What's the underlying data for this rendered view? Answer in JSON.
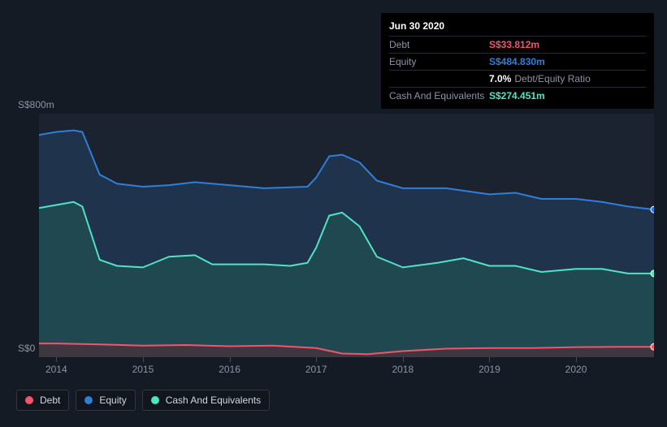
{
  "background_color": "#151b24",
  "chart": {
    "type": "area",
    "x": {
      "min": 2013.8,
      "max": 2020.9,
      "ticks": [
        2014,
        2015,
        2016,
        2017,
        2018,
        2019,
        2020
      ],
      "tick_labels": [
        "2014",
        "2015",
        "2016",
        "2017",
        "2018",
        "2019",
        "2020"
      ],
      "tick_fontsize": 12,
      "tick_color": "#8a94a6"
    },
    "y": {
      "min": 0,
      "max": 800,
      "ticks": [
        0,
        800
      ],
      "tick_labels": [
        "S$0",
        "S$800m"
      ],
      "tick_fontsize": 12,
      "tick_color": "#8a94a6"
    },
    "plot_background": "#1b2330",
    "series": [
      {
        "name": "equity",
        "stroke": "#2f7ed8",
        "stroke_width": 2,
        "fill": "#224464",
        "fill_opacity": 0.55,
        "end_marker_color": "#2f7ed8",
        "points": [
          [
            2013.8,
            730
          ],
          [
            2014.0,
            740
          ],
          [
            2014.2,
            745
          ],
          [
            2014.3,
            740
          ],
          [
            2014.5,
            600
          ],
          [
            2014.7,
            570
          ],
          [
            2015.0,
            560
          ],
          [
            2015.3,
            565
          ],
          [
            2015.6,
            575
          ],
          [
            2016.0,
            565
          ],
          [
            2016.4,
            555
          ],
          [
            2016.9,
            560
          ],
          [
            2017.0,
            590
          ],
          [
            2017.15,
            660
          ],
          [
            2017.3,
            665
          ],
          [
            2017.5,
            640
          ],
          [
            2017.7,
            580
          ],
          [
            2018.0,
            555
          ],
          [
            2018.5,
            555
          ],
          [
            2019.0,
            535
          ],
          [
            2019.3,
            540
          ],
          [
            2019.6,
            520
          ],
          [
            2020.0,
            520
          ],
          [
            2020.3,
            510
          ],
          [
            2020.6,
            495
          ],
          [
            2020.9,
            485
          ]
        ]
      },
      {
        "name": "cash",
        "stroke": "#50e3c2",
        "stroke_width": 2,
        "fill": "#1f5a55",
        "fill_opacity": 0.55,
        "end_marker_color": "#50e3c2",
        "points": [
          [
            2013.8,
            490
          ],
          [
            2014.0,
            500
          ],
          [
            2014.2,
            510
          ],
          [
            2014.3,
            495
          ],
          [
            2014.5,
            320
          ],
          [
            2014.7,
            300
          ],
          [
            2015.0,
            295
          ],
          [
            2015.3,
            330
          ],
          [
            2015.6,
            335
          ],
          [
            2015.8,
            305
          ],
          [
            2016.0,
            305
          ],
          [
            2016.4,
            305
          ],
          [
            2016.7,
            300
          ],
          [
            2016.9,
            310
          ],
          [
            2017.0,
            360
          ],
          [
            2017.15,
            465
          ],
          [
            2017.3,
            475
          ],
          [
            2017.5,
            430
          ],
          [
            2017.7,
            330
          ],
          [
            2018.0,
            295
          ],
          [
            2018.4,
            310
          ],
          [
            2018.7,
            325
          ],
          [
            2019.0,
            300
          ],
          [
            2019.3,
            300
          ],
          [
            2019.6,
            280
          ],
          [
            2020.0,
            290
          ],
          [
            2020.3,
            290
          ],
          [
            2020.6,
            275
          ],
          [
            2020.9,
            275
          ]
        ]
      },
      {
        "name": "debt",
        "stroke": "#f1556c",
        "stroke_width": 2,
        "fill": "#5a2a33",
        "fill_opacity": 0.55,
        "end_marker_color": "#f1556c",
        "points": [
          [
            2013.8,
            45
          ],
          [
            2014.0,
            45
          ],
          [
            2014.5,
            42
          ],
          [
            2015.0,
            38
          ],
          [
            2015.5,
            40
          ],
          [
            2016.0,
            36
          ],
          [
            2016.5,
            38
          ],
          [
            2017.0,
            30
          ],
          [
            2017.3,
            12
          ],
          [
            2017.6,
            10
          ],
          [
            2018.0,
            20
          ],
          [
            2018.5,
            28
          ],
          [
            2019.0,
            30
          ],
          [
            2019.5,
            30
          ],
          [
            2020.0,
            33
          ],
          [
            2020.5,
            34
          ],
          [
            2020.9,
            34
          ]
        ]
      }
    ]
  },
  "tooltip": {
    "date": "Jun 30 2020",
    "rows": [
      {
        "label": "Debt",
        "value": "S$33.812m",
        "color": "#f1556c"
      },
      {
        "label": "Equity",
        "value": "S$484.830m",
        "color": "#2f7ed8"
      },
      {
        "label": "",
        "ratio_pct": "7.0%",
        "ratio_label": "Debt/Equity Ratio"
      },
      {
        "label": "Cash And Equivalents",
        "value": "S$274.451m",
        "color": "#50e3c2"
      }
    ]
  },
  "legend": [
    {
      "label": "Debt",
      "color": "#f1556c"
    },
    {
      "label": "Equity",
      "color": "#2f7ed8"
    },
    {
      "label": "Cash And Equivalents",
      "color": "#50e3c2"
    }
  ]
}
